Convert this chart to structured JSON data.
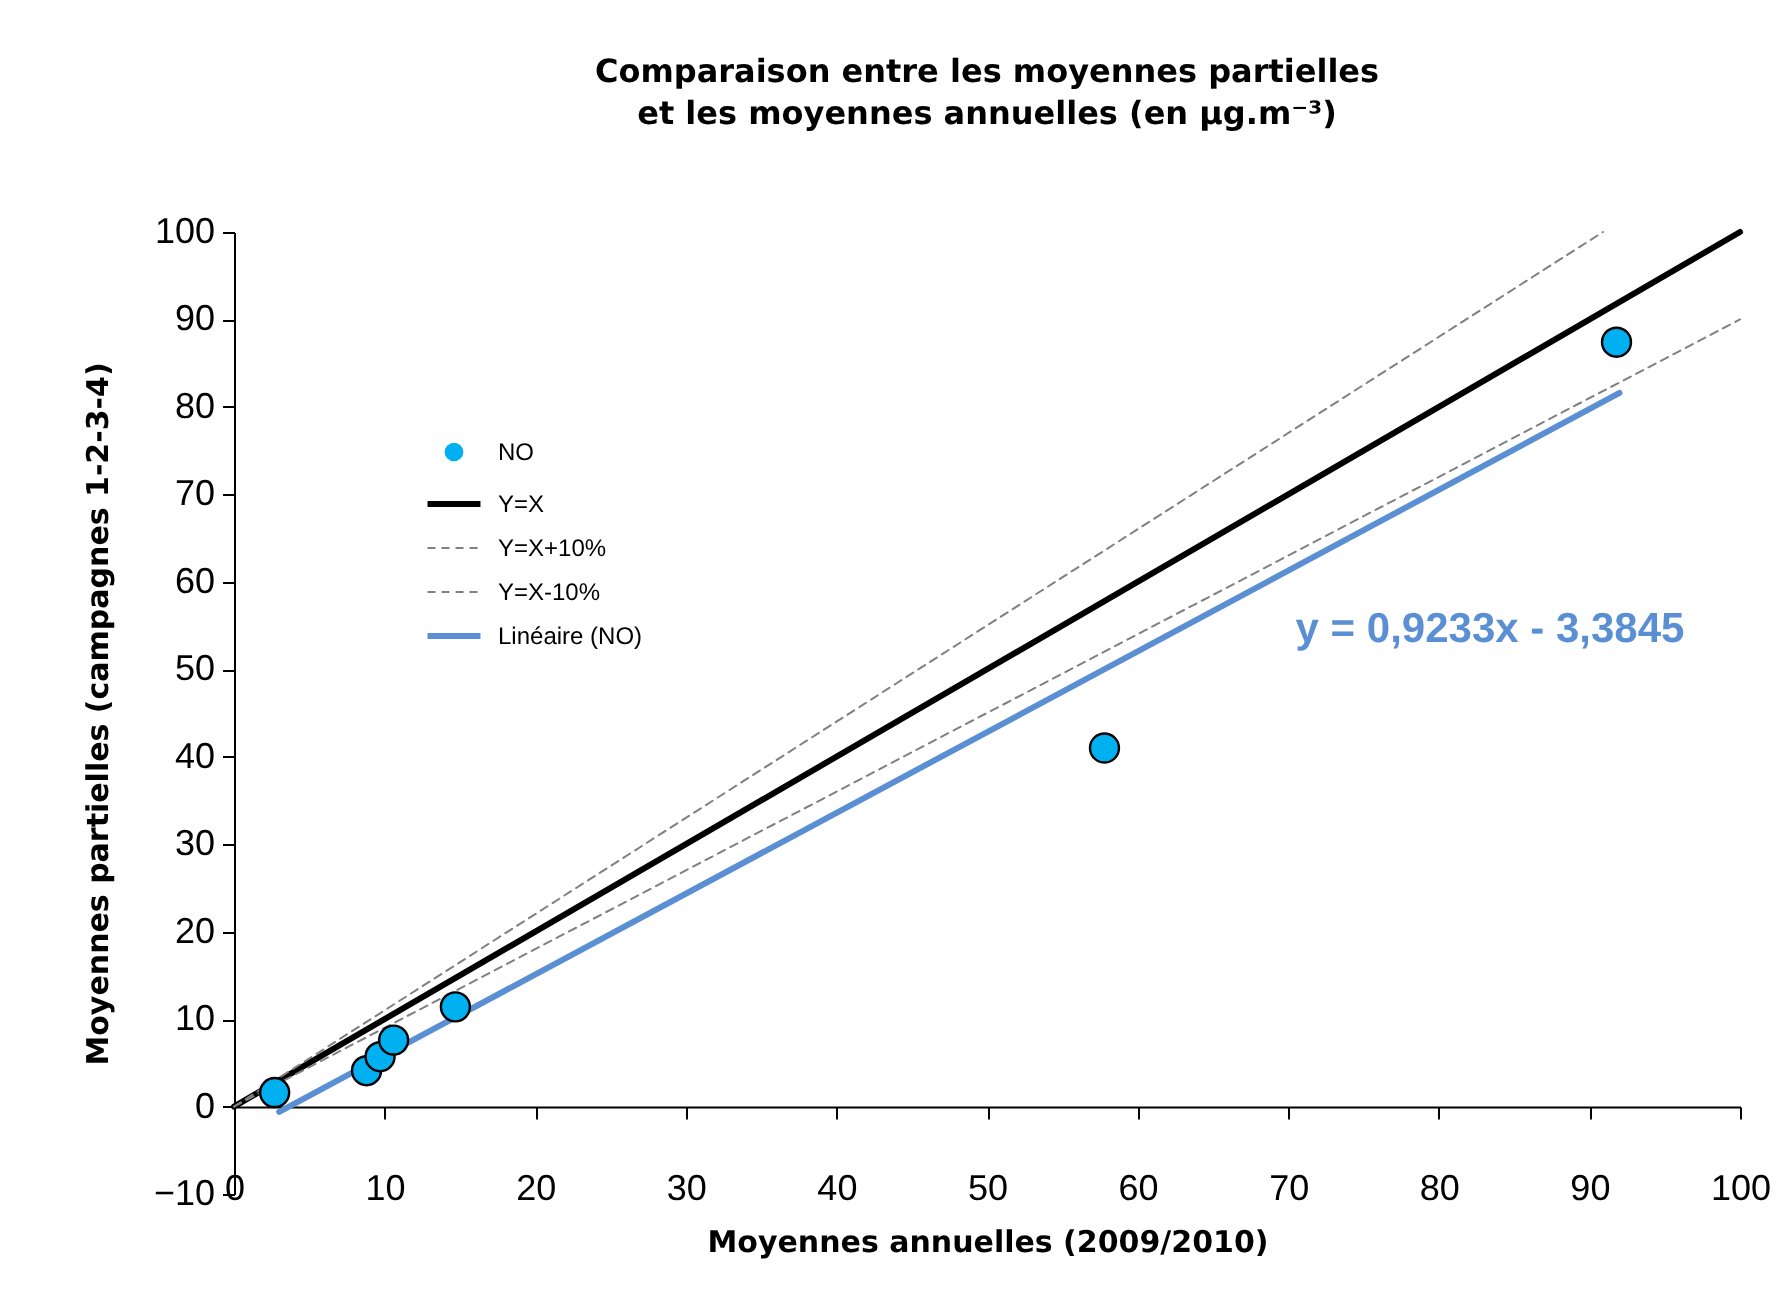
{
  "chart_data": {
    "type": "scatter",
    "title": "Comparaison entre les moyennes partielles\net les moyennes annuelles (en µg.m⁻³)",
    "xlabel": "Moyennes annuelles (2009/2010)",
    "ylabel": "Moyennes partielles (campagnes 1-2-3-4)",
    "xlim": [
      0,
      100
    ],
    "ylim": [
      -10,
      100
    ],
    "xticks": [
      0,
      10,
      20,
      30,
      40,
      50,
      60,
      70,
      80,
      90,
      100
    ],
    "yticks": [
      -10,
      0,
      10,
      20,
      30,
      40,
      50,
      60,
      70,
      80,
      90,
      100
    ],
    "legend": "top left",
    "grid": false,
    "series": [
      {
        "name": "NO",
        "marker": "circle",
        "color": "#00b0f0",
        "x": [
          2.7,
          8.8,
          9.7,
          10.6,
          14.7,
          57.8,
          91.8
        ],
        "values": [
          1.6,
          4.1,
          5.7,
          7.6,
          11.4,
          41.0,
          87.4
        ]
      },
      {
        "name": "Y=X",
        "type": "line",
        "color": "#000000",
        "line_style": "solid",
        "x": [
          0,
          100
        ],
        "values": [
          0,
          100
        ]
      },
      {
        "name": "Y=X+10%",
        "type": "line",
        "color": "#808080",
        "line_style": "dashed",
        "x": [
          0,
          90.9
        ],
        "values": [
          0,
          100
        ]
      },
      {
        "name": "Y=X-10%",
        "type": "line",
        "color": "#808080",
        "line_style": "dashed",
        "x": [
          0,
          100
        ],
        "values": [
          0,
          90
        ]
      },
      {
        "name": "Linéaire (NO)",
        "type": "line",
        "color": "#5b8fd4",
        "line_style": "solid",
        "x": [
          3,
          92
        ],
        "values": [
          -0.6,
          81.6
        ]
      }
    ],
    "annotations": [
      "y = 0,9233x - 3,3845"
    ]
  }
}
